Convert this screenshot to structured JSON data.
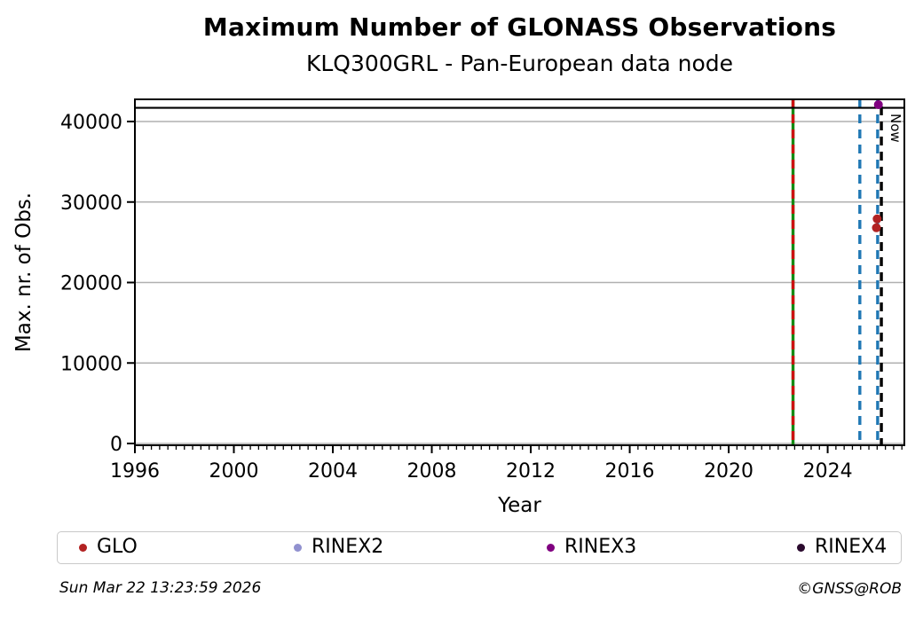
{
  "chart_data": {
    "type": "scatter",
    "title": "Maximum Number of GLONASS Observations",
    "subtitle": "KLQ300GRL - Pan-European data node",
    "xlabel": "Year",
    "ylabel": "Max. nr. of Obs.",
    "xlim": [
      1996,
      2027.1
    ],
    "ylim": [
      0,
      42800
    ],
    "x_major_ticks": [
      1996,
      2000,
      2004,
      2008,
      2012,
      2016,
      2020,
      2024
    ],
    "x_minor_step_years": 0.33333,
    "y_ticks": [
      0,
      10000,
      20000,
      30000,
      40000
    ],
    "grid": "horizontal-only",
    "grid_color": "#b0b0b0",
    "frame_color": "#000000",
    "series": [
      {
        "name": "GLO",
        "color": "#b22222",
        "points": [
          {
            "x": 2026.0,
            "y": 27900
          },
          {
            "x": 2025.97,
            "y": 26800
          }
        ]
      },
      {
        "name": "RINEX2",
        "color": "#9191cf",
        "points": []
      },
      {
        "name": "RINEX3",
        "color": "#800080",
        "points": [
          {
            "x": 2026.05,
            "y": 42100
          }
        ]
      },
      {
        "name": "RINEX4",
        "color": "#2b0a2e",
        "points": []
      }
    ],
    "hlines": [
      {
        "y": 41700,
        "color": "#000000",
        "style": "solid"
      }
    ],
    "vlines": [
      {
        "x": 2022.6,
        "color": "#148a14",
        "style": "solid"
      },
      {
        "x": 2022.6,
        "color": "#cc1111",
        "style": "dashed"
      },
      {
        "x": 2025.3,
        "color": "#1f77b4",
        "style": "dashed"
      },
      {
        "x": 2026.02,
        "color": "#1f77b4",
        "style": "dashed"
      },
      {
        "x": 2026.17,
        "color": "#000000",
        "style": "dashed",
        "label": "Now"
      }
    ],
    "legend": {
      "position": "bottom",
      "entries": [
        "GLO",
        "RINEX2",
        "RINEX3",
        "RINEX4"
      ]
    }
  },
  "footer": {
    "timestamp": "Sun Mar 22 13:23:59 2026",
    "credit": "©GNSS@ROB"
  }
}
